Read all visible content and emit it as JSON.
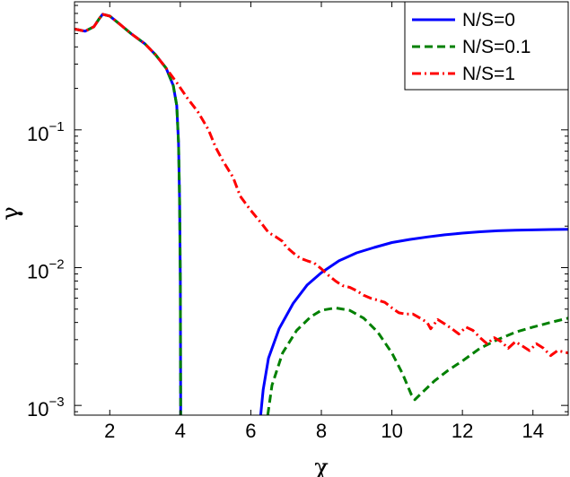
{
  "chart_data": {
    "type": "line",
    "title": "",
    "xlabel": "χ",
    "ylabel": "γ",
    "xlim": [
      1,
      15
    ],
    "ylim": [
      0.00085,
      0.85
    ],
    "yscale": "log",
    "x_ticks": [
      2,
      4,
      6,
      8,
      10,
      12,
      14
    ],
    "y_ticks": [
      {
        "value": 0.1,
        "base": "10",
        "exp": "−1"
      },
      {
        "value": 0.01,
        "base": "10",
        "exp": "−2"
      },
      {
        "value": 0.001,
        "base": "10",
        "exp": "−3"
      }
    ],
    "grid": false,
    "legend_position": "top-right",
    "series": [
      {
        "name": "N/S=0",
        "color": "#0000ff",
        "style": "solid",
        "points": [
          [
            1.0,
            0.54
          ],
          [
            1.3,
            0.52
          ],
          [
            1.55,
            0.56
          ],
          [
            1.7,
            0.64
          ],
          [
            1.8,
            0.69
          ],
          [
            2.0,
            0.67
          ],
          [
            2.3,
            0.58
          ],
          [
            2.6,
            0.5
          ],
          [
            3.0,
            0.42
          ],
          [
            3.3,
            0.35
          ],
          [
            3.6,
            0.28
          ],
          [
            3.8,
            0.21
          ],
          [
            3.9,
            0.15
          ],
          [
            3.95,
            0.08
          ],
          [
            3.98,
            0.03
          ],
          [
            4.0,
            0.008
          ],
          [
            4.01,
            0.00085
          ],
          null,
          [
            6.28,
            0.00085
          ],
          [
            6.35,
            0.0013
          ],
          [
            6.5,
            0.0022
          ],
          [
            6.8,
            0.0036
          ],
          [
            7.2,
            0.0055
          ],
          [
            7.6,
            0.0075
          ],
          [
            8.0,
            0.0092
          ],
          [
            8.5,
            0.0112
          ],
          [
            9.0,
            0.0128
          ],
          [
            9.5,
            0.014
          ],
          [
            10.0,
            0.0152
          ],
          [
            10.5,
            0.016
          ],
          [
            11.0,
            0.0167
          ],
          [
            11.5,
            0.0173
          ],
          [
            12.0,
            0.0178
          ],
          [
            12.5,
            0.0182
          ],
          [
            13.0,
            0.0185
          ],
          [
            13.5,
            0.0187
          ],
          [
            14.0,
            0.0188
          ],
          [
            14.5,
            0.0189
          ],
          [
            15.0,
            0.019
          ]
        ]
      },
      {
        "name": "N/S=0.1",
        "color": "#008000",
        "style": "dashed",
        "points": [
          [
            1.0,
            0.54
          ],
          [
            1.3,
            0.52
          ],
          [
            1.55,
            0.56
          ],
          [
            1.7,
            0.64
          ],
          [
            1.8,
            0.69
          ],
          [
            2.0,
            0.67
          ],
          [
            2.3,
            0.58
          ],
          [
            2.6,
            0.5
          ],
          [
            3.0,
            0.42
          ],
          [
            3.3,
            0.35
          ],
          [
            3.6,
            0.28
          ],
          [
            3.8,
            0.21
          ],
          [
            3.9,
            0.15
          ],
          [
            3.95,
            0.08
          ],
          [
            3.98,
            0.03
          ],
          [
            4.0,
            0.008
          ],
          [
            4.01,
            0.00085
          ],
          null,
          [
            6.48,
            0.00085
          ],
          [
            6.6,
            0.0014
          ],
          [
            6.9,
            0.0024
          ],
          [
            7.3,
            0.0035
          ],
          [
            7.7,
            0.0044
          ],
          [
            8.0,
            0.0049
          ],
          [
            8.4,
            0.0051
          ],
          [
            8.8,
            0.0049
          ],
          [
            9.2,
            0.0043
          ],
          [
            9.6,
            0.0034
          ],
          [
            10.0,
            0.0024
          ],
          [
            10.3,
            0.0017
          ],
          [
            10.55,
            0.0012
          ],
          [
            10.65,
            0.0011
          ],
          [
            10.8,
            0.0012
          ],
          [
            11.2,
            0.0015
          ],
          [
            11.6,
            0.0018
          ],
          [
            12.0,
            0.0021
          ],
          [
            12.5,
            0.0026
          ],
          [
            13.0,
            0.003
          ],
          [
            13.5,
            0.0034
          ],
          [
            14.0,
            0.0037
          ],
          [
            14.5,
            0.004
          ],
          [
            15.0,
            0.0043
          ]
        ]
      },
      {
        "name": "N/S=1",
        "color": "#ff0000",
        "style": "dashdot",
        "points": [
          [
            1.0,
            0.54
          ],
          [
            1.3,
            0.52
          ],
          [
            1.55,
            0.56
          ],
          [
            1.7,
            0.64
          ],
          [
            1.8,
            0.69
          ],
          [
            2.0,
            0.67
          ],
          [
            2.3,
            0.58
          ],
          [
            2.6,
            0.5
          ],
          [
            3.0,
            0.42
          ],
          [
            3.3,
            0.35
          ],
          [
            3.6,
            0.28
          ],
          [
            3.9,
            0.22
          ],
          [
            4.2,
            0.17
          ],
          [
            4.5,
            0.135
          ],
          [
            4.8,
            0.1
          ],
          [
            5.0,
            0.075
          ],
          [
            5.2,
            0.06
          ],
          [
            5.5,
            0.045
          ],
          [
            5.7,
            0.033
          ],
          [
            6.0,
            0.026
          ],
          [
            6.3,
            0.021
          ],
          [
            6.5,
            0.018
          ],
          [
            6.7,
            0.0168
          ],
          [
            6.9,
            0.0155
          ],
          [
            7.0,
            0.0142
          ],
          [
            7.2,
            0.0128
          ],
          [
            7.4,
            0.0117
          ],
          [
            7.6,
            0.0112
          ],
          [
            7.8,
            0.0108
          ],
          [
            8.0,
            0.0098
          ],
          [
            8.2,
            0.0088
          ],
          [
            8.4,
            0.008
          ],
          [
            8.6,
            0.0074
          ],
          [
            8.8,
            0.0072
          ],
          [
            9.0,
            0.0068
          ],
          [
            9.2,
            0.0063
          ],
          [
            9.4,
            0.006
          ],
          [
            9.6,
            0.0058
          ],
          [
            9.8,
            0.0056
          ],
          [
            10.0,
            0.0051
          ],
          [
            10.2,
            0.0047
          ],
          [
            10.4,
            0.0046
          ],
          [
            10.6,
            0.0046
          ],
          [
            10.8,
            0.0043
          ],
          [
            11.0,
            0.004
          ],
          [
            11.1,
            0.0036
          ],
          [
            11.3,
            0.0042
          ],
          [
            11.5,
            0.0039
          ],
          [
            11.7,
            0.0036
          ],
          [
            11.9,
            0.0033
          ],
          [
            12.1,
            0.0037
          ],
          [
            12.3,
            0.0035
          ],
          [
            12.5,
            0.0031
          ],
          [
            12.7,
            0.0028
          ],
          [
            12.9,
            0.0031
          ],
          [
            13.1,
            0.0029
          ],
          [
            13.3,
            0.0026
          ],
          [
            13.5,
            0.0029
          ],
          [
            13.7,
            0.0027
          ],
          [
            13.9,
            0.0025
          ],
          [
            14.1,
            0.0028
          ],
          [
            14.3,
            0.0026
          ],
          [
            14.5,
            0.0023
          ],
          [
            14.7,
            0.0025
          ],
          [
            15.0,
            0.0024
          ]
        ]
      }
    ]
  }
}
